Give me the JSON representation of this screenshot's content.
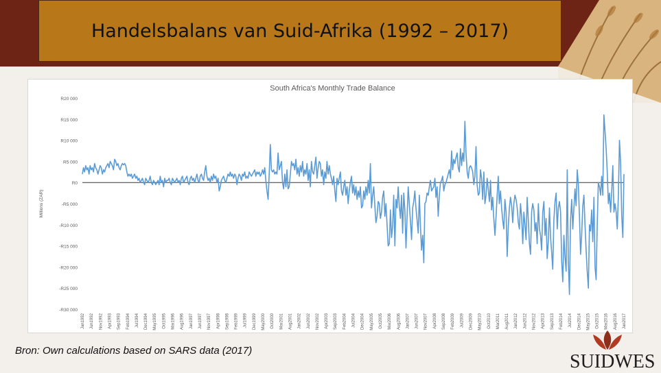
{
  "slide": {
    "title": "Handelsbalans van Suid-Afrika (1992 – 2017)",
    "source": "Bron: Own calculations based on SARS data (2017)",
    "logo_text": "SUIDWES"
  },
  "colors": {
    "band": "#6e2414",
    "title_box": "#b8781a",
    "line": "#5b9bd5",
    "zero_line": "#333333"
  },
  "chart_data": {
    "type": "line",
    "title": "South Africa's Monthly Trade Balance",
    "ylabel": "Millions (ZAR)",
    "xlabel": "",
    "ylim": [
      -30000,
      20000
    ],
    "yticks": [
      20000,
      15000,
      10000,
      5000,
      0,
      -5000,
      -10000,
      -15000,
      -20000,
      -25000,
      -30000
    ],
    "ytick_labels": [
      "R20 000",
      "R15 000",
      "R10 000",
      "R5 000",
      "R0",
      "-R5 000",
      "-R10 000",
      "-R15 000",
      "-R20 000",
      "-R25 000",
      "-R30 000"
    ],
    "xtick_labels": [
      "Jan1992",
      "Jun1992",
      "Nov1992",
      "Apr1993",
      "Sep1993",
      "Feb1994",
      "Jul1994",
      "Dec1994",
      "May1995",
      "Oct1995",
      "Mar1996",
      "Aug1996",
      "Jan1997",
      "Jun1997",
      "Nov1997",
      "Apr1998",
      "Sep1998",
      "Feb1999",
      "Jul1999",
      "Dec1999",
      "May2000",
      "Oct2000",
      "Mar2001",
      "Aug2001",
      "Jan2002",
      "Jun2002",
      "Nov2002",
      "Apr2003",
      "Sep2003",
      "Feb2004",
      "Jul2004",
      "Dec2004",
      "May2005",
      "Oct2005",
      "Mar2006",
      "Aug2006",
      "Jan2007",
      "Jun2007",
      "Nov2007",
      "Apr2008",
      "Sep2008",
      "Feb2009",
      "Jul2009",
      "Dec2009",
      "May2010",
      "Oct2010",
      "Mar2011",
      "Aug2011",
      "Jan2012",
      "Jun2012",
      "Nov2012",
      "Apr2013",
      "Sep2013",
      "Feb2014",
      "Jul2014",
      "Dec2014",
      "May2015",
      "Oct2015",
      "Mar2016",
      "Aug2016",
      "Jan2017"
    ],
    "zero_line": true,
    "grid": false,
    "series": [
      {
        "values": [
          2000,
          3500,
          2500,
          4000,
          3000,
          3500,
          2000,
          4000,
          3000,
          3500,
          2500,
          4500,
          3500,
          3000,
          2000,
          3000,
          4000,
          3500,
          2000,
          3000,
          2500,
          3500,
          4000,
          4500,
          3500,
          5000,
          4500,
          4000,
          3000,
          5500,
          5000,
          4000,
          4500,
          3500,
          3000,
          4000,
          4500,
          4200,
          4500,
          4000,
          2500,
          1500,
          2000,
          1500,
          2000,
          1000,
          1500,
          2000,
          1000,
          1500,
          500,
          1000,
          0,
          500,
          1000,
          0,
          -500,
          1000,
          500,
          0,
          500,
          1500,
          0,
          -500,
          500,
          0,
          -500,
          0,
          500,
          -500,
          1500,
          0,
          500,
          -1000,
          1000,
          0,
          500,
          500,
          1000,
          0,
          -500,
          1000,
          500,
          0,
          500,
          1000,
          0,
          500,
          -500,
          1000,
          1500,
          0,
          500,
          1000,
          1500,
          0,
          -500,
          1000,
          1500,
          500,
          1000,
          0,
          1000,
          2000,
          500,
          0,
          1500,
          2000,
          1000,
          500,
          2500,
          4000,
          1500,
          500,
          1000,
          0,
          1500,
          500,
          2000,
          1000,
          1500,
          0,
          1000,
          -2000,
          -1000,
          500,
          1000,
          1500,
          500,
          0,
          1000,
          2000,
          1500,
          2500,
          1500,
          2000,
          1000,
          2000,
          1500,
          -500,
          1000,
          2000,
          1500,
          500,
          2000,
          1500,
          2500,
          1000,
          1500,
          1000,
          2500,
          2000,
          1500,
          2000,
          2500,
          3000,
          1500,
          2500,
          2000,
          2500,
          1500,
          2000,
          3000,
          2000,
          3500,
          500,
          -2000,
          -4000,
          2000,
          9000,
          3000,
          2500,
          3000,
          2000,
          2500,
          2000,
          7000,
          3000,
          4000,
          5000,
          0,
          -1500,
          2000,
          -1000,
          3000,
          -1500,
          -1000,
          2000,
          5000,
          4000,
          4500,
          3000,
          5500,
          2000,
          3500,
          1500,
          4000,
          2500,
          5000,
          1500,
          3000,
          2000,
          4500,
          500,
          3000,
          -1000,
          5000,
          2500,
          2000,
          4000,
          6000,
          1000,
          3500,
          5000,
          4500,
          1500,
          3000,
          -500,
          2500,
          1000,
          5000,
          2000,
          4000,
          2000,
          1000,
          -500,
          1500,
          -2000,
          -4500,
          1000,
          -500,
          1000,
          2500,
          -2000,
          -3000,
          -1000,
          500,
          -3000,
          -1000,
          -5000,
          -2000,
          0,
          1500,
          -2500,
          -500,
          -3000,
          -1000,
          -4000,
          -2000,
          -3500,
          -1000,
          -6000,
          -5500,
          -2000,
          -4000,
          -1000,
          -3000,
          500,
          -2500,
          4500,
          -6000,
          -3000,
          -1000,
          -5500,
          -9500,
          -8000,
          -4500,
          -5000,
          -8500,
          -7000,
          -3500,
          -2000,
          -8000,
          -5000,
          -10000,
          -15000,
          -14500,
          -6500,
          -13000,
          -10500,
          -3000,
          -15000,
          -4000,
          -6000,
          -1000,
          -5500,
          -8500,
          -3000,
          -12000,
          -2500,
          -6500,
          -15500,
          -8000,
          -1000,
          -5000,
          -9000,
          -13500,
          -6000,
          -4500,
          -2000,
          -6000,
          -9000,
          -12000,
          -3000,
          -10000,
          -16000,
          -12500,
          -19000,
          -5000,
          -4500,
          -2500,
          -3000,
          -1000,
          500,
          -2000,
          -1500,
          -1000,
          1000,
          -3500,
          -1000,
          -8000,
          -3000,
          0,
          500,
          1500,
          -2000,
          -500,
          0,
          1000,
          2000,
          3000,
          1000,
          7500,
          3000,
          5500,
          4500,
          6000,
          7000,
          3500,
          2500,
          8000,
          4000,
          7000,
          5000,
          14500,
          7000,
          2500,
          1000,
          3500,
          4000,
          3500,
          2500,
          -500,
          1500,
          8500,
          -500,
          -3000,
          -2500,
          3000,
          1000,
          -4000,
          2500,
          -5000,
          -3000,
          1000,
          -1500,
          -4500,
          500,
          -6500,
          -3500,
          -8500,
          -12500,
          -8000,
          -3000,
          1500,
          -5000,
          -2000,
          -6000,
          -9000,
          -11000,
          -4000,
          -7000,
          -17500,
          -10500,
          -6000,
          -3500,
          -5500,
          -9500,
          -5000,
          -3000,
          -4000,
          -6000,
          -9500,
          -11000,
          -5000,
          -8000,
          -14500,
          -7000,
          -10000,
          -13500,
          -3500,
          -9000,
          -14500,
          -17000,
          -7000,
          -5000,
          -6500,
          -11500,
          -9500,
          -14500,
          -5000,
          -11000,
          -12500,
          -16000,
          -7000,
          -4500,
          -12500,
          -8500,
          -18000,
          -14000,
          -6000,
          -13000,
          -16500,
          -20500,
          -9000,
          -4500,
          -2500,
          -11000,
          -6000,
          -4500,
          -7000,
          -18500,
          -23500,
          -12500,
          -17500,
          -21000,
          3000,
          -19000,
          -26500,
          -9000,
          -4000,
          -11000,
          -6000,
          -1500,
          -5500,
          3000,
          -500,
          -8000,
          -17000,
          -12500,
          -5500,
          -3000,
          -10000,
          -16000,
          -21000,
          -25000,
          -10000,
          -11500,
          -6500,
          -14000,
          -3500,
          -20000,
          -23000,
          -10000,
          0,
          -1000,
          -3000,
          1500,
          -3000,
          16000,
          12000,
          8000,
          2500,
          -5000,
          -2500,
          -7000,
          -2000,
          4000,
          -7000,
          -5000,
          -7000,
          -11000,
          -3000,
          10000,
          5000,
          -8000,
          -13000,
          2000
        ]
      }
    ]
  }
}
